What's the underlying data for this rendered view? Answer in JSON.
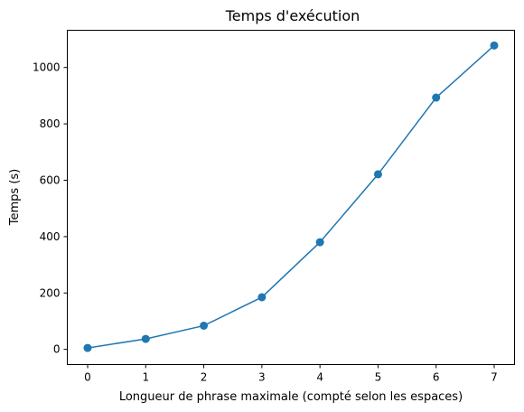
{
  "chart_data": {
    "type": "line",
    "title": "Temps d'exécution",
    "xlabel": "Longueur de phrase maximale (compté selon les espaces)",
    "ylabel": "Temps (s)",
    "x": [
      0,
      1,
      2,
      3,
      4,
      5,
      6,
      7
    ],
    "series": [
      {
        "values": [
          5,
          37,
          84,
          185,
          380,
          621,
          893,
          1078
        ],
        "color": "#1f77b4",
        "marker": "circle"
      }
    ],
    "xlim": [
      -0.35,
      7.35
    ],
    "ylim": [
      -54,
      1132
    ],
    "xticks": [
      0,
      1,
      2,
      3,
      4,
      5,
      6,
      7
    ],
    "yticks": [
      0,
      200,
      400,
      600,
      800,
      1000
    ],
    "grid": false,
    "legend": false
  }
}
